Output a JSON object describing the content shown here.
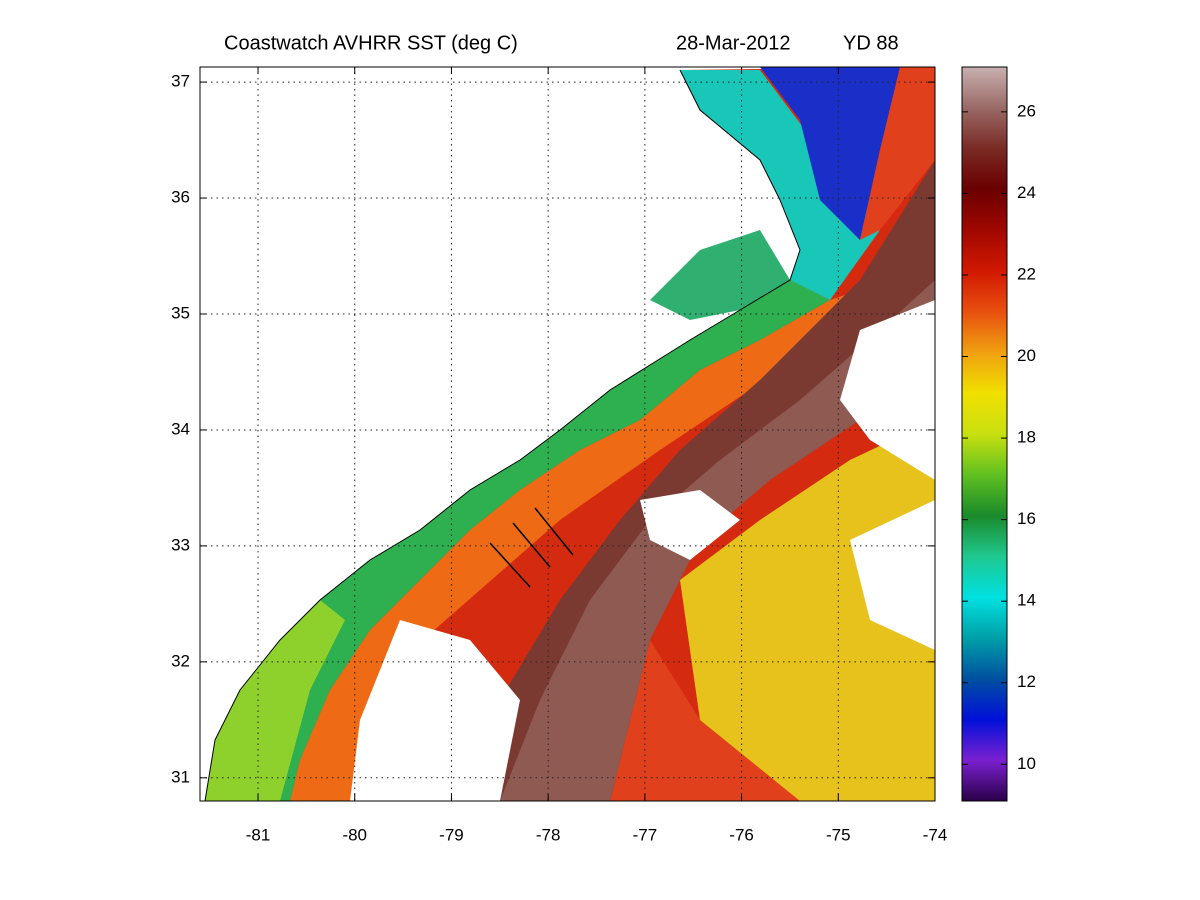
{
  "title": "Coastwatch   AVHRR   SST  (deg C)",
  "date": "28-Mar-2012",
  "year_day": "YD 88",
  "map": {
    "xlim": [
      -81.6,
      -74
    ],
    "xticks": [
      -81,
      -80,
      -79,
      -78,
      -77,
      -76,
      -75,
      -74
    ],
    "ylim": [
      30.8,
      37.13
    ],
    "yticks": [
      31,
      32,
      33,
      34,
      35,
      36,
      37
    ],
    "grid": true
  },
  "colorbar": {
    "clim": [
      9.1,
      27.1
    ],
    "ticks": [
      10,
      12,
      14,
      16,
      18,
      20,
      22,
      24,
      26
    ],
    "colormap": [
      "#2a0048",
      "#7a20d0",
      "#0010d8",
      "#0050a0",
      "#00a0a8",
      "#00e0e0",
      "#20c890",
      "#1a8a2a",
      "#60c020",
      "#c8e010",
      "#f0e000",
      "#f0a010",
      "#e85010",
      "#d01800",
      "#a00800",
      "#6a0000",
      "#7a2a24",
      "#9a6a66",
      "#c8b0b0"
    ]
  }
}
